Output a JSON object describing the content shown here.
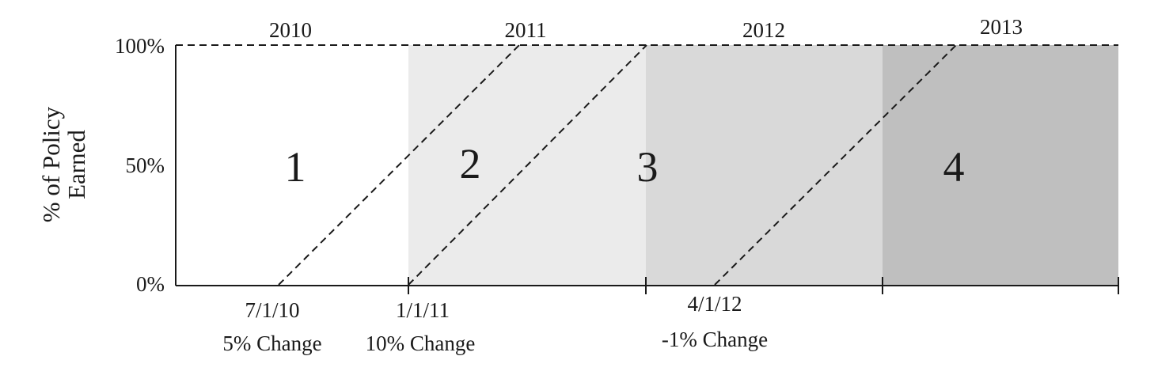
{
  "chart_data": {
    "type": "diagram",
    "ylabel_lines": [
      "% of Policy",
      "Earned"
    ],
    "y_ticks": [
      "0%",
      "50%",
      "100%"
    ],
    "years": [
      "2010",
      "2011",
      "2012",
      "2013"
    ],
    "regions": [
      {
        "label": "1",
        "fill": "#ffffff"
      },
      {
        "label": "2",
        "fill": "#ebebeb"
      },
      {
        "label": "3",
        "fill": "#d9d9d9"
      },
      {
        "label": "4",
        "fill": "#bfbfbf"
      }
    ],
    "rate_changes": [
      {
        "date": "7/1/10",
        "change": "5% Change"
      },
      {
        "date": "1/1/11",
        "change": "10% Change"
      },
      {
        "date": "4/1/12",
        "change": "-1% Change"
      }
    ]
  }
}
